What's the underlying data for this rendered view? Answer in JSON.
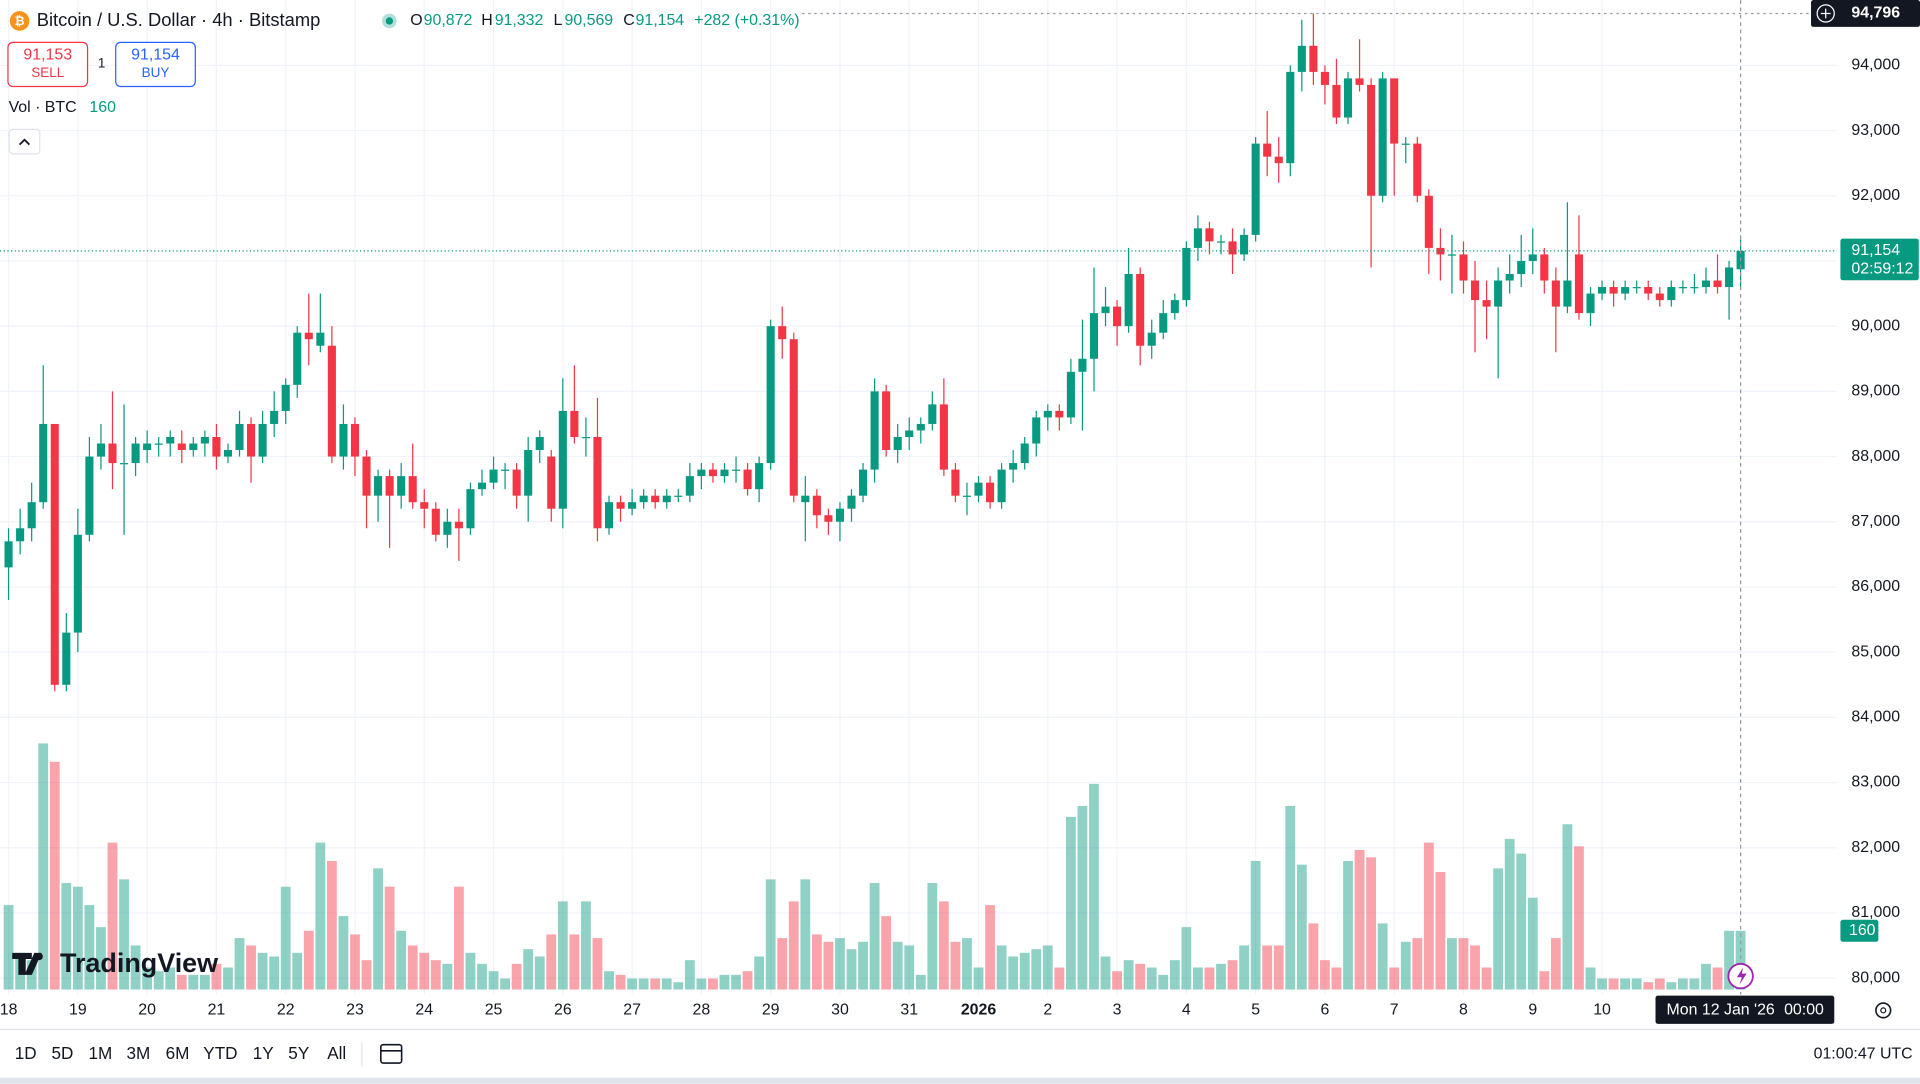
{
  "header": {
    "symbol": "Bitcoin / U.S. Dollar · 4h · Bitstamp",
    "ohlc": [
      [
        "O",
        "90,872"
      ],
      [
        "H",
        "91,332"
      ],
      [
        "L",
        "90,569"
      ],
      [
        "C",
        "91,154"
      ]
    ],
    "change": "+282 (+0.31%)"
  },
  "trade": {
    "sell_price": "91,153",
    "sell": "SELL",
    "qty": "1",
    "buy_price": "91,154",
    "buy": "BUY"
  },
  "volume_legend": {
    "label": "Vol · BTC",
    "value": "160"
  },
  "logo": "TradingView",
  "crosshair": {
    "date": "Mon 12 Jan '26",
    "time": "00:00"
  },
  "toolbar": {
    "ranges": [
      "1D",
      "5D",
      "1M",
      "3M",
      "6M",
      "YTD",
      "1Y",
      "5Y",
      "All"
    ],
    "clock": "01:00:47 UTC"
  },
  "chart_data": {
    "type": "candlestick",
    "categories": [
      "18",
      null,
      null,
      null,
      null,
      null,
      "19",
      null,
      null,
      null,
      null,
      null,
      "20",
      null,
      null,
      null,
      null,
      null,
      "21",
      null,
      null,
      null,
      null,
      null,
      "22",
      null,
      null,
      null,
      null,
      null,
      "23",
      null,
      null,
      null,
      null,
      null,
      "24",
      null,
      null,
      null,
      null,
      null,
      "25",
      null,
      null,
      null,
      null,
      null,
      "26",
      null,
      null,
      null,
      null,
      null,
      "27",
      null,
      null,
      null,
      null,
      null,
      "28",
      null,
      null,
      null,
      null,
      null,
      "29",
      null,
      null,
      null,
      null,
      null,
      "30",
      null,
      null,
      null,
      null,
      null,
      "31",
      null,
      null,
      null,
      null,
      null,
      "2026",
      null,
      null,
      null,
      null,
      null,
      "2",
      null,
      null,
      null,
      null,
      null,
      "3",
      null,
      null,
      null,
      null,
      null,
      "4",
      null,
      null,
      null,
      null,
      null,
      "5",
      null,
      null,
      null,
      null,
      null,
      "6",
      null,
      null,
      null,
      null,
      null,
      "7",
      null,
      null,
      null,
      null,
      null,
      "8",
      null,
      null,
      null,
      null,
      null,
      "9",
      null,
      null,
      null,
      null,
      null,
      "10",
      null,
      null,
      null,
      null,
      null,
      null,
      null,
      null,
      null,
      null,
      null,
      null
    ],
    "open": [
      86300,
      86700,
      86900,
      87300,
      88500,
      84500,
      85300,
      86800,
      88000,
      88200,
      87900,
      87900,
      88100,
      88200,
      88200,
      88200,
      88100,
      88200,
      88300,
      88000,
      88100,
      88500,
      88000,
      88500,
      88700,
      89100,
      89900,
      89700,
      89700,
      88000,
      88500,
      88000,
      87400,
      87700,
      87400,
      87700,
      87300,
      87200,
      86800,
      87000,
      86900,
      87500,
      87600,
      87800,
      87800,
      87400,
      88100,
      88000,
      87200,
      88700,
      88300,
      88300,
      86900,
      87300,
      87200,
      87300,
      87400,
      87300,
      87400,
      87400,
      87700,
      87800,
      87700,
      87800,
      87800,
      87500,
      87900,
      90000,
      89800,
      87300,
      87400,
      87100,
      87000,
      87200,
      87400,
      87800,
      89000,
      88100,
      88300,
      88400,
      88500,
      88800,
      87800,
      87400,
      87400,
      87600,
      87300,
      87800,
      87900,
      88200,
      88600,
      88700,
      88600,
      89300,
      89500,
      90200,
      90300,
      90000,
      90800,
      89700,
      89900,
      90200,
      90400,
      91200,
      91500,
      91300,
      91300,
      91100,
      91400,
      92800,
      92600,
      92500,
      93900,
      94300,
      93900,
      93700,
      93200,
      93800,
      93700,
      92000,
      93800,
      92800,
      92800,
      92000,
      91200,
      91100,
      91100,
      90700,
      90400,
      90300,
      90700,
      90800,
      91000,
      91100,
      90700,
      90300,
      91100,
      90200,
      90500,
      90600,
      90500,
      90600,
      90600,
      90500,
      90400,
      90600,
      90600,
      90600,
      90700,
      90600,
      90872
    ],
    "high": [
      86900,
      87200,
      87600,
      89400,
      88500,
      85600,
      87200,
      88300,
      88500,
      89000,
      88800,
      88300,
      88400,
      88300,
      88400,
      88400,
      88300,
      88400,
      88500,
      88200,
      88700,
      88600,
      88700,
      89000,
      89200,
      90000,
      90500,
      90500,
      90000,
      88800,
      88600,
      88100,
      87800,
      87800,
      87900,
      88200,
      87500,
      87300,
      87200,
      87200,
      87600,
      87800,
      88000,
      87900,
      87900,
      88300,
      88400,
      88100,
      89200,
      89400,
      88600,
      88900,
      87400,
      87400,
      87500,
      87500,
      87500,
      87500,
      87500,
      87900,
      87900,
      87900,
      87900,
      88000,
      87900,
      88000,
      90100,
      90300,
      89900,
      87700,
      87500,
      87200,
      87300,
      87500,
      87900,
      89200,
      89100,
      88500,
      88600,
      88600,
      89000,
      89200,
      87900,
      87600,
      87700,
      87700,
      87900,
      88100,
      88300,
      88700,
      88800,
      88800,
      89500,
      90100,
      90900,
      90600,
      90400,
      91200,
      90900,
      90100,
      90400,
      90500,
      91300,
      91700,
      91600,
      91400,
      91500,
      91500,
      92900,
      93300,
      92900,
      94000,
      94700,
      94796,
      94000,
      94100,
      93900,
      94400,
      93800,
      93900,
      93800,
      92900,
      92900,
      92100,
      91500,
      91400,
      91300,
      91000,
      90700,
      90900,
      91100,
      91400,
      91500,
      91200,
      90900,
      91900,
      91700,
      90600,
      90700,
      90700,
      90700,
      90700,
      90700,
      90600,
      90700,
      90700,
      90800,
      90900,
      91100,
      91000,
      91332
    ],
    "low": [
      85800,
      86500,
      86700,
      87200,
      84400,
      84400,
      85000,
      86700,
      87800,
      87500,
      86800,
      87700,
      87900,
      88000,
      88000,
      87900,
      88000,
      88000,
      87800,
      87900,
      88000,
      87600,
      87900,
      88300,
      88500,
      88900,
      89400,
      89600,
      87900,
      87800,
      87700,
      86900,
      87000,
      86600,
      87200,
      87200,
      86900,
      86700,
      86600,
      86400,
      86800,
      87400,
      87500,
      87500,
      87200,
      87000,
      87900,
      87000,
      86900,
      88200,
      88000,
      86700,
      86800,
      87000,
      87100,
      87200,
      87200,
      87200,
      87300,
      87300,
      87500,
      87600,
      87600,
      87600,
      87400,
      87300,
      87800,
      89500,
      87300,
      86700,
      86900,
      86800,
      86700,
      87000,
      87300,
      87600,
      88000,
      87900,
      88100,
      88200,
      88400,
      87700,
      87300,
      87100,
      87300,
      87200,
      87200,
      87600,
      87800,
      88000,
      88400,
      88400,
      88500,
      88400,
      89000,
      90000,
      89700,
      89900,
      89400,
      89500,
      89800,
      90100,
      90300,
      91000,
      91100,
      91100,
      90800,
      91000,
      91300,
      92300,
      92200,
      92300,
      93600,
      93700,
      93400,
      93100,
      93100,
      93600,
      90900,
      91900,
      92000,
      92500,
      91900,
      90800,
      90700,
      90500,
      90500,
      89600,
      89800,
      89200,
      90500,
      90600,
      90800,
      90500,
      89600,
      90200,
      90100,
      90000,
      90400,
      90300,
      90400,
      90500,
      90400,
      90300,
      90300,
      90500,
      90500,
      90500,
      90500,
      90100,
      90569
    ],
    "close": [
      86700,
      86900,
      87300,
      88500,
      84500,
      85300,
      86800,
      88000,
      88200,
      87900,
      87900,
      88200,
      88200,
      88200,
      88300,
      88100,
      88200,
      88300,
      88000,
      88100,
      88500,
      88000,
      88500,
      88700,
      89100,
      89900,
      89800,
      89900,
      88000,
      88500,
      88000,
      87400,
      87700,
      87400,
      87700,
      87300,
      87200,
      86800,
      87000,
      86900,
      87500,
      87600,
      87800,
      87800,
      87400,
      88100,
      88300,
      87200,
      88700,
      88300,
      88300,
      86900,
      87300,
      87200,
      87300,
      87400,
      87300,
      87400,
      87400,
      87700,
      87800,
      87700,
      87800,
      87800,
      87500,
      87900,
      90000,
      89800,
      87400,
      87400,
      87100,
      87000,
      87200,
      87400,
      87800,
      89000,
      88100,
      88300,
      88400,
      88500,
      88800,
      87800,
      87400,
      87400,
      87600,
      87300,
      87800,
      87900,
      88200,
      88600,
      88700,
      88600,
      89300,
      89500,
      90200,
      90300,
      90000,
      90800,
      89700,
      89900,
      90200,
      90400,
      91200,
      91500,
      91300,
      91300,
      91100,
      91400,
      92800,
      92600,
      92500,
      93900,
      94300,
      93900,
      93700,
      93200,
      93800,
      93700,
      92000,
      93800,
      92800,
      92800,
      92000,
      91200,
      91100,
      91100,
      90700,
      90400,
      90300,
      90700,
      90800,
      91000,
      91100,
      90700,
      90300,
      90700,
      90200,
      90500,
      90600,
      90500,
      90600,
      90600,
      90500,
      90400,
      90600,
      90600,
      90600,
      90700,
      90600,
      90900,
      91154
    ],
    "volume": [
      230,
      100,
      80,
      670,
      620,
      290,
      280,
      230,
      170,
      400,
      300,
      120,
      60,
      50,
      60,
      40,
      40,
      40,
      70,
      60,
      140,
      120,
      100,
      90,
      280,
      100,
      160,
      400,
      350,
      200,
      150,
      80,
      330,
      280,
      160,
      120,
      100,
      80,
      70,
      280,
      100,
      70,
      50,
      30,
      70,
      110,
      90,
      150,
      240,
      150,
      240,
      140,
      50,
      40,
      30,
      30,
      30,
      30,
      20,
      80,
      30,
      30,
      40,
      40,
      50,
      90,
      300,
      140,
      240,
      300,
      150,
      130,
      140,
      110,
      130,
      290,
      200,
      130,
      120,
      40,
      290,
      240,
      130,
      140,
      60,
      230,
      120,
      90,
      100,
      110,
      120,
      60,
      470,
      500,
      560,
      90,
      50,
      80,
      70,
      60,
      40,
      80,
      170,
      60,
      60,
      70,
      80,
      120,
      350,
      120,
      120,
      500,
      340,
      180,
      80,
      60,
      350,
      380,
      360,
      180,
      60,
      130,
      140,
      400,
      320,
      140,
      140,
      120,
      60,
      330,
      410,
      370,
      250,
      50,
      140,
      450,
      390,
      60,
      30,
      30,
      30,
      30,
      20,
      30,
      20,
      30,
      30,
      70,
      60,
      160,
      160
    ],
    "colors": {
      "up": "#089981",
      "down": "#f23645"
    },
    "ylim": [
      79750,
      95000
    ],
    "yticks": [
      {
        "value": 80000,
        "label": "80,000"
      },
      {
        "value": 81000,
        "label": "81,000"
      },
      {
        "value": 82000,
        "label": "82,000"
      },
      {
        "value": 83000,
        "label": "83,000"
      },
      {
        "value": 84000,
        "label": "84,000"
      },
      {
        "value": 85000,
        "label": "85,000"
      },
      {
        "value": 86000,
        "label": "86,000"
      },
      {
        "value": 87000,
        "label": "87,000"
      },
      {
        "value": 88000,
        "label": "88,000"
      },
      {
        "value": 89000,
        "label": "89,000"
      },
      {
        "value": 90000,
        "label": "90,000"
      },
      {
        "value": 91000,
        "label": "91,000"
      },
      {
        "value": 92000,
        "label": "92,000"
      },
      {
        "value": 93000,
        "label": "93,000"
      },
      {
        "value": 94000,
        "label": "94,000"
      }
    ],
    "grid": true,
    "high_marker": {
      "value": 94796,
      "label": "94,796"
    },
    "last_price": {
      "value": 91154,
      "label": "91,154",
      "countdown": "02:59:12"
    },
    "volume_tag": {
      "value": 160,
      "label": "160"
    }
  }
}
